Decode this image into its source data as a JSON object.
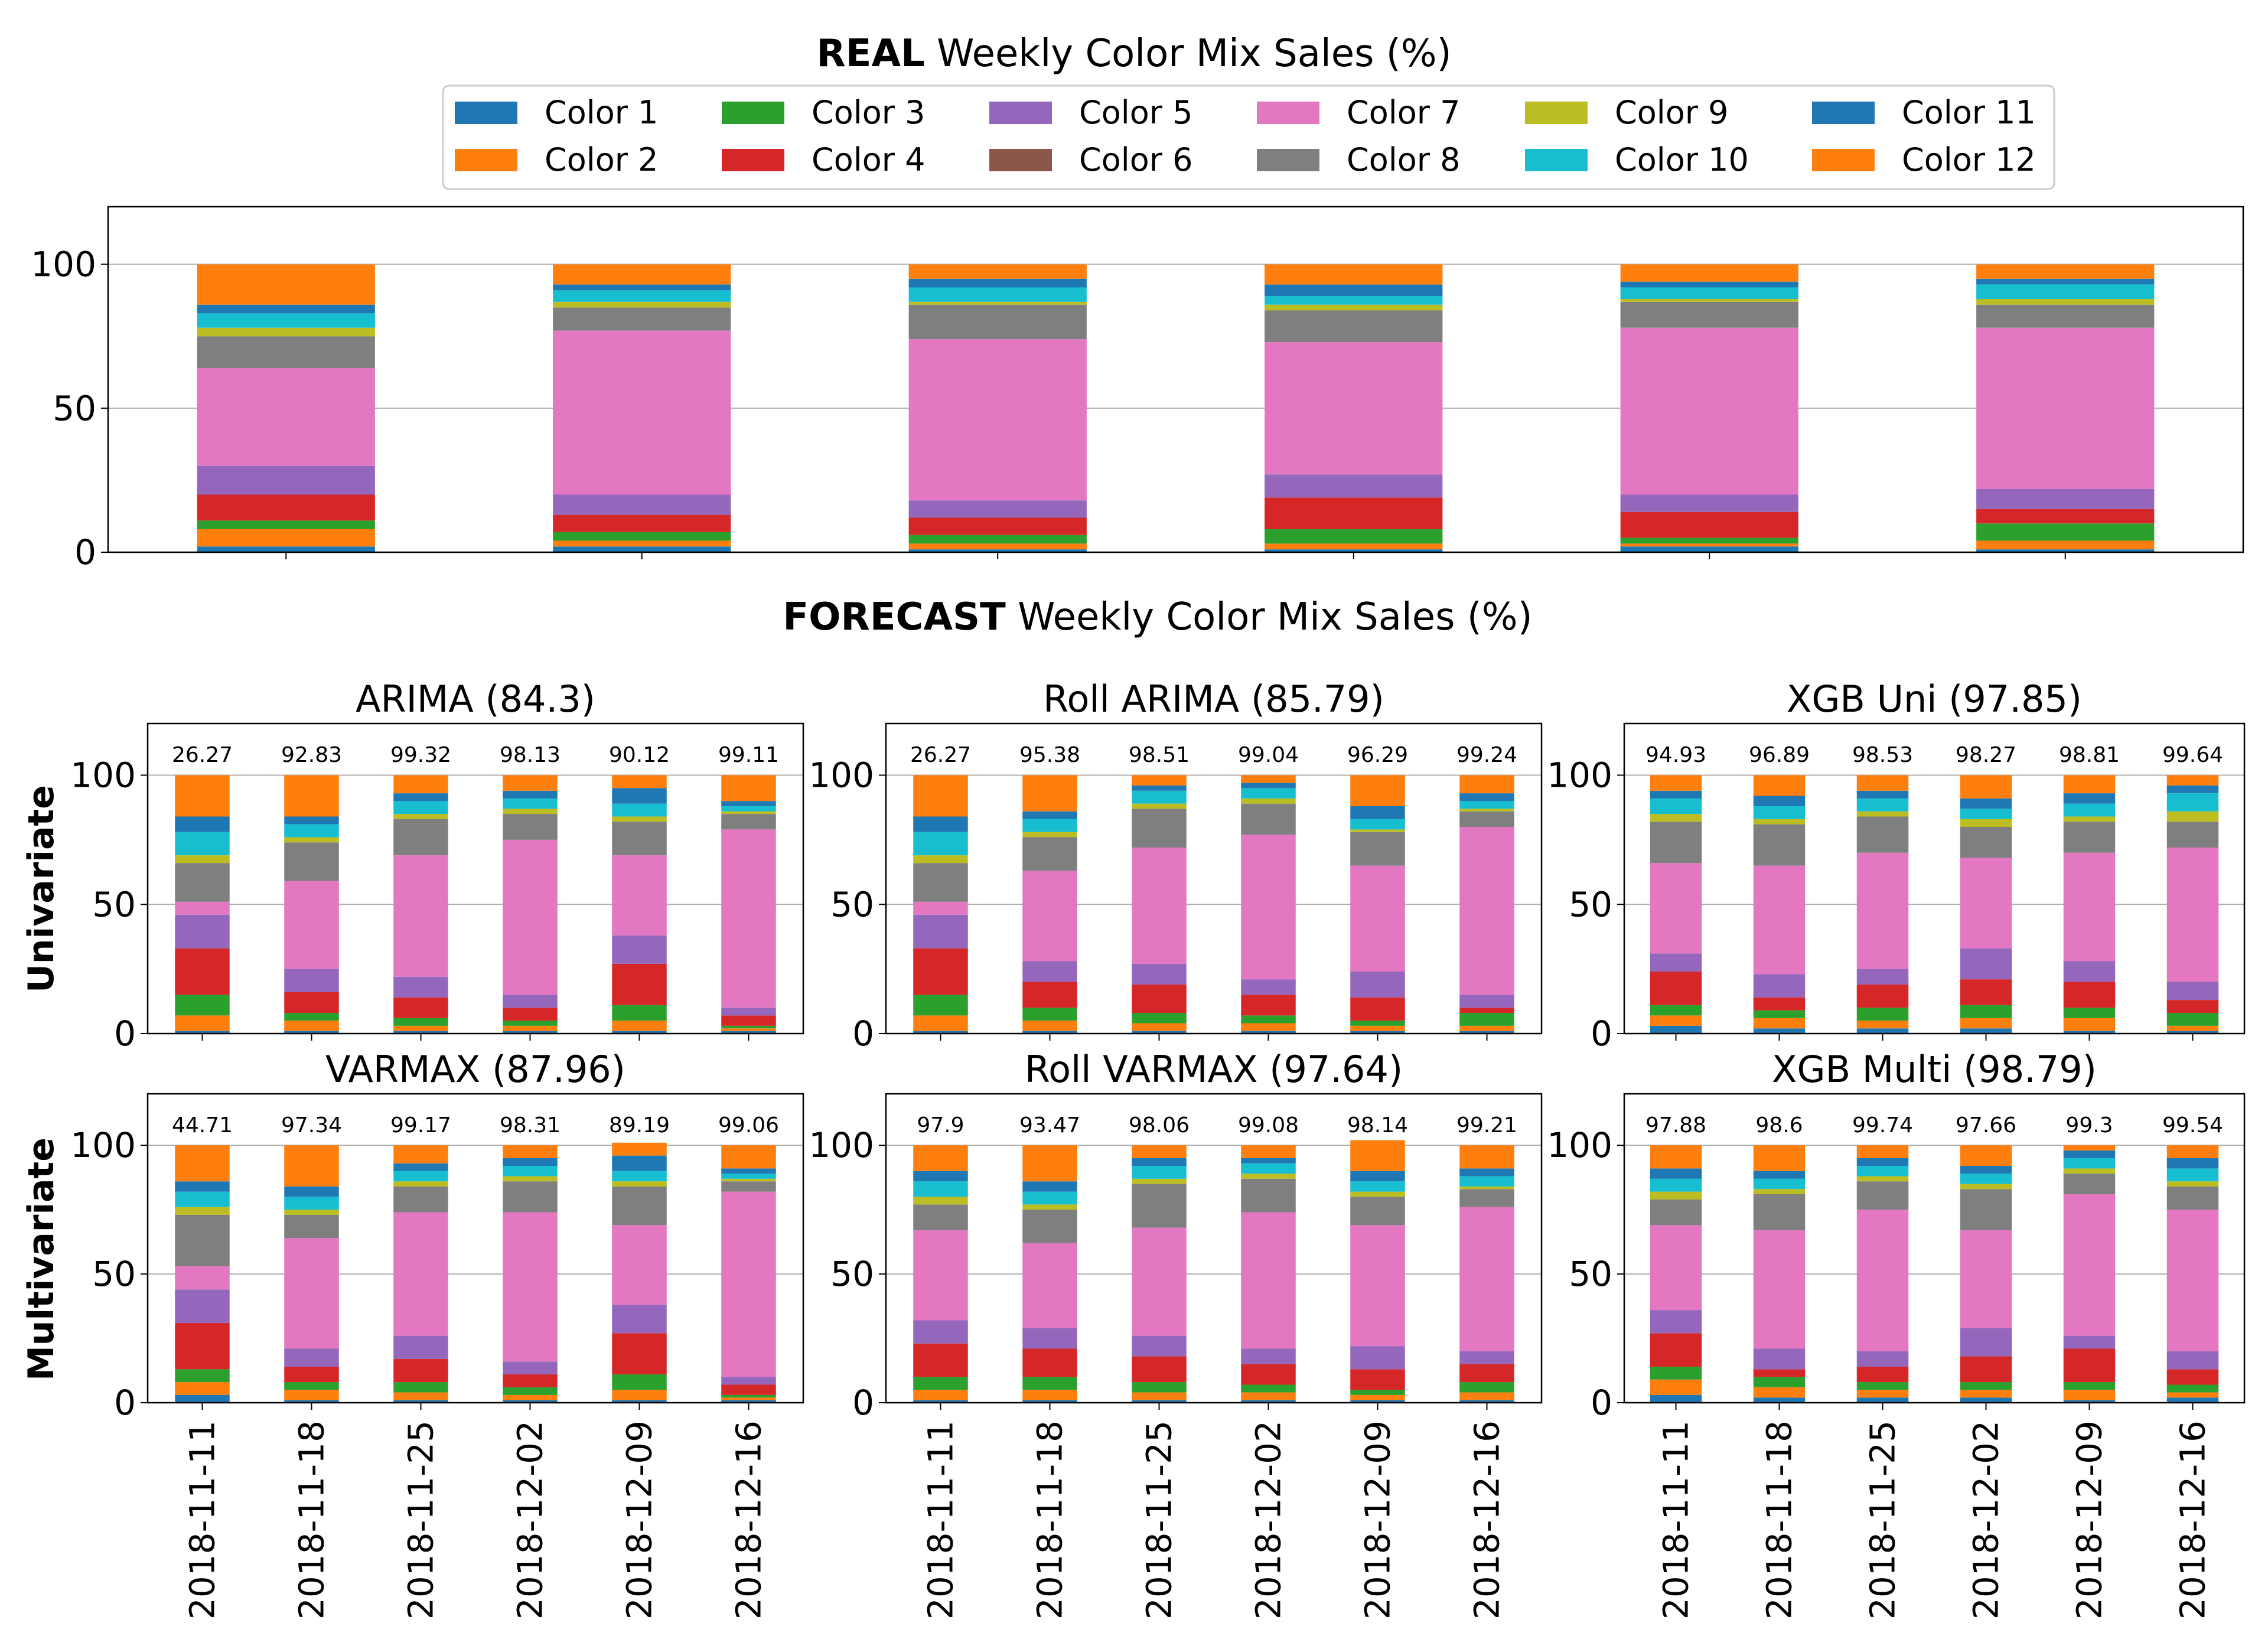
{
  "chart_data": [
    {
      "id": "real",
      "type": "stacked-bar",
      "title_bold": "REAL",
      "title_rest": " Weekly Color Mix Sales (%)",
      "ylim": [
        0,
        120
      ],
      "yticks": [
        "0",
        "50",
        "100"
      ],
      "categories": [
        "2018-11-11",
        "2018-11-18",
        "2018-11-25",
        "2018-12-02",
        "2018-12-09",
        "2018-12-16"
      ],
      "series": [
        {
          "name": "Color 1",
          "values": [
            2,
            2,
            1,
            1,
            2,
            1
          ]
        },
        {
          "name": "Color 2",
          "values": [
            6,
            2,
            2,
            2,
            1,
            3
          ]
        },
        {
          "name": "Color 3",
          "values": [
            3,
            3,
            3,
            5,
            2,
            6
          ]
        },
        {
          "name": "Color 4",
          "values": [
            9,
            6,
            6,
            11,
            9,
            5
          ]
        },
        {
          "name": "Color 5",
          "values": [
            10,
            7,
            6,
            8,
            6,
            7
          ]
        },
        {
          "name": "Color 6",
          "values": [
            0,
            0,
            0,
            0,
            0,
            0
          ]
        },
        {
          "name": "Color 7",
          "values": [
            34,
            57,
            56,
            46,
            58,
            56
          ]
        },
        {
          "name": "Color 8",
          "values": [
            11,
            8,
            12,
            11,
            9,
            8
          ]
        },
        {
          "name": "Color 9",
          "values": [
            3,
            2,
            1,
            2,
            1,
            2
          ]
        },
        {
          "name": "Color 10",
          "values": [
            5,
            4,
            5,
            3,
            4,
            5
          ]
        },
        {
          "name": "Color 11",
          "values": [
            3,
            2,
            3,
            4,
            2,
            2
          ]
        },
        {
          "name": "Color 12",
          "values": [
            14,
            7,
            5,
            7,
            6,
            5
          ]
        }
      ]
    },
    {
      "id": "arima",
      "type": "stacked-bar",
      "title": "ARIMA (84.3)",
      "row": "univariate",
      "col": 0,
      "ylim": [
        0,
        120
      ],
      "yticks": [
        "0",
        "50",
        "100"
      ],
      "annotations": [
        "26.27",
        "92.83",
        "99.32",
        "98.13",
        "90.12",
        "99.11"
      ],
      "categories": [
        "2018-11-11",
        "2018-11-18",
        "2018-11-25",
        "2018-12-02",
        "2018-12-09",
        "2018-12-16"
      ],
      "series": [
        {
          "name": "Color 1",
          "values": [
            1,
            1,
            1,
            1,
            1,
            1
          ]
        },
        {
          "name": "Color 2",
          "values": [
            6,
            4,
            2,
            2,
            4,
            1
          ]
        },
        {
          "name": "Color 3",
          "values": [
            8,
            3,
            3,
            2,
            6,
            1
          ]
        },
        {
          "name": "Color 4",
          "values": [
            18,
            8,
            8,
            5,
            16,
            4
          ]
        },
        {
          "name": "Color 5",
          "values": [
            13,
            9,
            8,
            5,
            11,
            3
          ]
        },
        {
          "name": "Color 6",
          "values": [
            0,
            0,
            0,
            0,
            0,
            0
          ]
        },
        {
          "name": "Color 7",
          "values": [
            5,
            34,
            47,
            60,
            31,
            69
          ]
        },
        {
          "name": "Color 8",
          "values": [
            15,
            15,
            14,
            10,
            13,
            6
          ]
        },
        {
          "name": "Color 9",
          "values": [
            3,
            2,
            2,
            2,
            2,
            1
          ]
        },
        {
          "name": "Color 10",
          "values": [
            9,
            5,
            5,
            4,
            5,
            2
          ]
        },
        {
          "name": "Color 11",
          "values": [
            6,
            3,
            3,
            3,
            6,
            2
          ]
        },
        {
          "name": "Color 12",
          "values": [
            16,
            16,
            7,
            6,
            5,
            10
          ]
        }
      ]
    },
    {
      "id": "roll-arima",
      "type": "stacked-bar",
      "title": "Roll ARIMA (85.79)",
      "row": "univariate",
      "col": 1,
      "ylim": [
        0,
        120
      ],
      "yticks": [
        "0",
        "50",
        "100"
      ],
      "annotations": [
        "26.27",
        "95.38",
        "98.51",
        "99.04",
        "96.29",
        "99.24"
      ],
      "categories": [
        "2018-11-11",
        "2018-11-18",
        "2018-11-25",
        "2018-12-02",
        "2018-12-09",
        "2018-12-16"
      ],
      "series": [
        {
          "name": "Color 1",
          "values": [
            1,
            1,
            1,
            1,
            1,
            1
          ]
        },
        {
          "name": "Color 2",
          "values": [
            6,
            4,
            3,
            3,
            2,
            2
          ]
        },
        {
          "name": "Color 3",
          "values": [
            8,
            5,
            4,
            3,
            2,
            5
          ]
        },
        {
          "name": "Color 4",
          "values": [
            18,
            10,
            11,
            8,
            9,
            2
          ]
        },
        {
          "name": "Color 5",
          "values": [
            13,
            8,
            8,
            6,
            10,
            5
          ]
        },
        {
          "name": "Color 6",
          "values": [
            0,
            0,
            0,
            0,
            0,
            0
          ]
        },
        {
          "name": "Color 7",
          "values": [
            5,
            35,
            45,
            56,
            41,
            65
          ]
        },
        {
          "name": "Color 8",
          "values": [
            15,
            13,
            15,
            12,
            13,
            6
          ]
        },
        {
          "name": "Color 9",
          "values": [
            3,
            2,
            2,
            2,
            1,
            1
          ]
        },
        {
          "name": "Color 10",
          "values": [
            9,
            5,
            5,
            4,
            4,
            3
          ]
        },
        {
          "name": "Color 11",
          "values": [
            6,
            3,
            2,
            2,
            5,
            3
          ]
        },
        {
          "name": "Color 12",
          "values": [
            16,
            14,
            4,
            3,
            12,
            7
          ]
        }
      ]
    },
    {
      "id": "xgb-uni",
      "type": "stacked-bar",
      "title": "XGB Uni (97.85)",
      "row": "univariate",
      "col": 2,
      "ylim": [
        0,
        120
      ],
      "yticks": [
        "0",
        "50",
        "100"
      ],
      "annotations": [
        "94.93",
        "96.89",
        "98.53",
        "98.27",
        "98.81",
        "99.64"
      ],
      "categories": [
        "2018-11-11",
        "2018-11-18",
        "2018-11-25",
        "2018-12-02",
        "2018-12-09",
        "2018-12-16"
      ],
      "series": [
        {
          "name": "Color 1",
          "values": [
            3,
            2,
            2,
            2,
            1,
            1
          ]
        },
        {
          "name": "Color 2",
          "values": [
            4,
            4,
            3,
            4,
            5,
            2
          ]
        },
        {
          "name": "Color 3",
          "values": [
            4,
            3,
            5,
            5,
            4,
            5
          ]
        },
        {
          "name": "Color 4",
          "values": [
            13,
            5,
            9,
            10,
            10,
            5
          ]
        },
        {
          "name": "Color 5",
          "values": [
            7,
            9,
            6,
            12,
            8,
            7
          ]
        },
        {
          "name": "Color 6",
          "values": [
            0,
            0,
            0,
            0,
            0,
            0
          ]
        },
        {
          "name": "Color 7",
          "values": [
            35,
            42,
            45,
            35,
            42,
            52
          ]
        },
        {
          "name": "Color 8",
          "values": [
            16,
            16,
            14,
            12,
            12,
            10
          ]
        },
        {
          "name": "Color 9",
          "values": [
            3,
            2,
            2,
            3,
            2,
            4
          ]
        },
        {
          "name": "Color 10",
          "values": [
            6,
            5,
            5,
            4,
            5,
            7
          ]
        },
        {
          "name": "Color 11",
          "values": [
            3,
            4,
            3,
            4,
            4,
            3
          ]
        },
        {
          "name": "Color 12",
          "values": [
            6,
            8,
            6,
            9,
            7,
            4
          ]
        }
      ]
    },
    {
      "id": "varmax",
      "type": "stacked-bar",
      "title": "VARMAX (87.96)",
      "row": "multivariate",
      "col": 0,
      "ylim": [
        0,
        120
      ],
      "yticks": [
        "0",
        "50",
        "100"
      ],
      "annotations": [
        "44.71",
        "97.34",
        "99.17",
        "98.31",
        "89.19",
        "99.06"
      ],
      "categories": [
        "2018-11-11",
        "2018-11-18",
        "2018-11-25",
        "2018-12-02",
        "2018-12-09",
        "2018-12-16"
      ],
      "series": [
        {
          "name": "Color 1",
          "values": [
            3,
            1,
            1,
            1,
            1,
            1
          ]
        },
        {
          "name": "Color 2",
          "values": [
            5,
            4,
            3,
            2,
            4,
            1
          ]
        },
        {
          "name": "Color 3",
          "values": [
            5,
            3,
            4,
            3,
            6,
            1
          ]
        },
        {
          "name": "Color 4",
          "values": [
            18,
            6,
            9,
            5,
            16,
            4
          ]
        },
        {
          "name": "Color 5",
          "values": [
            13,
            7,
            9,
            5,
            11,
            3
          ]
        },
        {
          "name": "Color 6",
          "values": [
            0,
            0,
            0,
            0,
            0,
            0
          ]
        },
        {
          "name": "Color 7",
          "values": [
            9,
            43,
            48,
            58,
            31,
            72
          ]
        },
        {
          "name": "Color 8",
          "values": [
            20,
            9,
            10,
            12,
            15,
            4
          ]
        },
        {
          "name": "Color 9",
          "values": [
            3,
            2,
            2,
            2,
            2,
            1
          ]
        },
        {
          "name": "Color 10",
          "values": [
            6,
            5,
            4,
            4,
            4,
            2
          ]
        },
        {
          "name": "Color 11",
          "values": [
            4,
            4,
            3,
            3,
            6,
            2
          ]
        },
        {
          "name": "Color 12",
          "values": [
            14,
            16,
            7,
            5,
            5,
            9
          ]
        }
      ]
    },
    {
      "id": "roll-varmax",
      "type": "stacked-bar",
      "title": "Roll VARMAX (97.64)",
      "row": "multivariate",
      "col": 1,
      "ylim": [
        0,
        120
      ],
      "yticks": [
        "0",
        "50",
        "100"
      ],
      "annotations": [
        "97.9",
        "93.47",
        "98.06",
        "99.08",
        "98.14",
        "99.21"
      ],
      "categories": [
        "2018-11-11",
        "2018-11-18",
        "2018-11-25",
        "2018-12-02",
        "2018-12-09",
        "2018-12-16"
      ],
      "series": [
        {
          "name": "Color 1",
          "values": [
            1,
            1,
            1,
            1,
            1,
            1
          ]
        },
        {
          "name": "Color 2",
          "values": [
            4,
            4,
            3,
            3,
            2,
            3
          ]
        },
        {
          "name": "Color 3",
          "values": [
            5,
            5,
            4,
            3,
            2,
            4
          ]
        },
        {
          "name": "Color 4",
          "values": [
            13,
            11,
            10,
            8,
            8,
            7
          ]
        },
        {
          "name": "Color 5",
          "values": [
            9,
            8,
            8,
            6,
            9,
            5
          ]
        },
        {
          "name": "Color 6",
          "values": [
            0,
            0,
            0,
            0,
            0,
            0
          ]
        },
        {
          "name": "Color 7",
          "values": [
            35,
            33,
            42,
            53,
            47,
            56
          ]
        },
        {
          "name": "Color 8",
          "values": [
            10,
            13,
            17,
            13,
            11,
            7
          ]
        },
        {
          "name": "Color 9",
          "values": [
            3,
            2,
            2,
            2,
            2,
            1
          ]
        },
        {
          "name": "Color 10",
          "values": [
            6,
            5,
            5,
            4,
            4,
            4
          ]
        },
        {
          "name": "Color 11",
          "values": [
            4,
            4,
            3,
            2,
            4,
            3
          ]
        },
        {
          "name": "Color 12",
          "values": [
            10,
            14,
            5,
            5,
            12,
            9
          ]
        }
      ]
    },
    {
      "id": "xgb-multi",
      "type": "stacked-bar",
      "title": "XGB Multi (98.79)",
      "row": "multivariate",
      "col": 2,
      "ylim": [
        0,
        120
      ],
      "yticks": [
        "0",
        "50",
        "100"
      ],
      "annotations": [
        "97.88",
        "98.6",
        "99.74",
        "97.66",
        "99.3",
        "99.54"
      ],
      "categories": [
        "2018-11-11",
        "2018-11-18",
        "2018-11-25",
        "2018-12-02",
        "2018-12-09",
        "2018-12-16"
      ],
      "series": [
        {
          "name": "Color 1",
          "values": [
            3,
            2,
            2,
            2,
            1,
            2
          ]
        },
        {
          "name": "Color 2",
          "values": [
            6,
            4,
            3,
            3,
            4,
            2
          ]
        },
        {
          "name": "Color 3",
          "values": [
            5,
            4,
            3,
            3,
            3,
            3
          ]
        },
        {
          "name": "Color 4",
          "values": [
            13,
            3,
            6,
            10,
            13,
            6
          ]
        },
        {
          "name": "Color 5",
          "values": [
            9,
            8,
            6,
            11,
            5,
            7
          ]
        },
        {
          "name": "Color 6",
          "values": [
            0,
            0,
            0,
            0,
            0,
            0
          ]
        },
        {
          "name": "Color 7",
          "values": [
            33,
            46,
            55,
            38,
            55,
            55
          ]
        },
        {
          "name": "Color 8",
          "values": [
            10,
            14,
            11,
            16,
            8,
            9
          ]
        },
        {
          "name": "Color 9",
          "values": [
            3,
            2,
            2,
            2,
            2,
            2
          ]
        },
        {
          "name": "Color 10",
          "values": [
            5,
            4,
            4,
            4,
            4,
            5
          ]
        },
        {
          "name": "Color 11",
          "values": [
            4,
            3,
            3,
            3,
            3,
            4
          ]
        },
        {
          "name": "Color 12",
          "values": [
            9,
            10,
            5,
            8,
            2,
            5
          ]
        }
      ]
    }
  ],
  "legend": {
    "placement": "top-center",
    "entries": [
      "Color 1",
      "Color 2",
      "Color 3",
      "Color 4",
      "Color 5",
      "Color 6",
      "Color 7",
      "Color 8",
      "Color 9",
      "Color 10",
      "Color 11",
      "Color 12"
    ]
  },
  "colors": {
    "Color 1": "#1f77b4",
    "Color 2": "#ff7f0e",
    "Color 3": "#2ca02c",
    "Color 4": "#d62728",
    "Color 5": "#9467bd",
    "Color 6": "#8c564b",
    "Color 7": "#e377c2",
    "Color 8": "#7f7f7f",
    "Color 9": "#bcbd22",
    "Color 10": "#17becf",
    "Color 11": "#1f77b4",
    "Color 12": "#ff7f0e"
  },
  "forecast_title": {
    "bold": "FORECAST",
    "rest": " Weekly Color Mix Sales (%)"
  },
  "row_labels": {
    "univariate": "Univariate",
    "multivariate": "Multivariate"
  }
}
